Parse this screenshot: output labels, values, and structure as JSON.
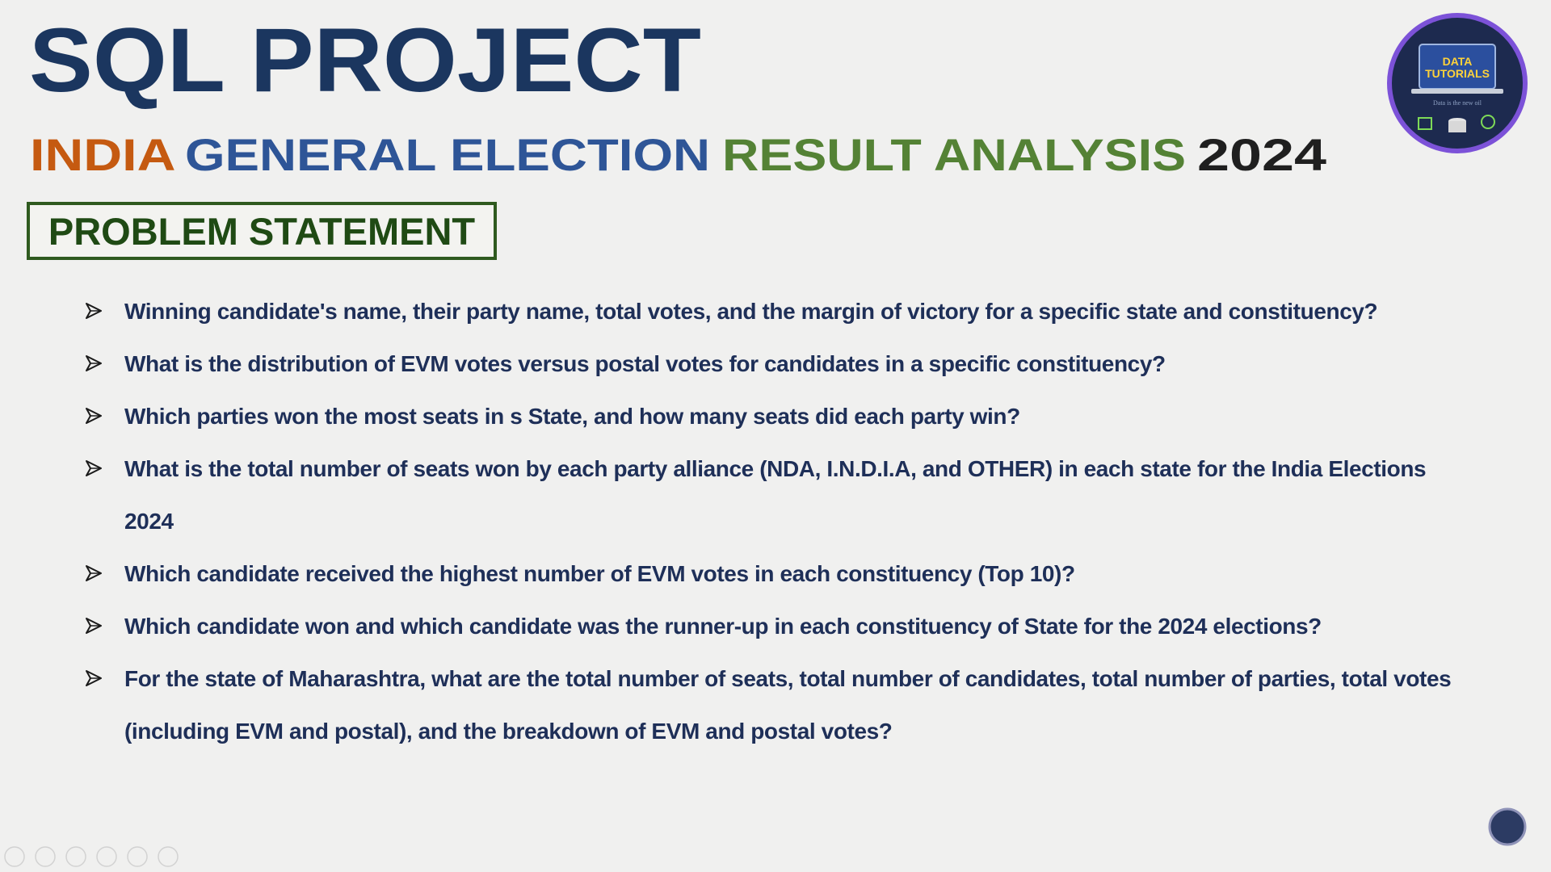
{
  "header": {
    "title": "SQL PROJECT",
    "subtitle": [
      "INDIA",
      "GENERAL ELECTION",
      "RESULT ANALYSIS",
      "2024"
    ]
  },
  "logo": {
    "lines": [
      "DATA",
      "TUTORIALS"
    ],
    "tagline": "Data is the new oil"
  },
  "section": {
    "heading": "PROBLEM STATEMENT"
  },
  "items": [
    "Winning candidate's name, their party name, total votes, and the margin of victory for a specific state and constituency?",
    "What is the distribution of EVM votes versus postal votes for candidates in a specific constituency?",
    "Which parties won the most seats in s State, and how many seats did each party win?",
    "What is the total number of seats won by each party alliance (NDA, I.N.D.I.A, and OTHER) in each state for the India Elections 2024",
    "Which candidate received the highest number of EVM votes in each constituency (Top 10)?",
    "Which candidate won and which candidate was the runner-up in each constituency of State for the 2024 elections?",
    "For the state of Maharashtra, what are the total number of seats, total number of candidates, total number of parties, total votes (including EVM and postal), and the breakdown of EVM and postal votes?"
  ]
}
